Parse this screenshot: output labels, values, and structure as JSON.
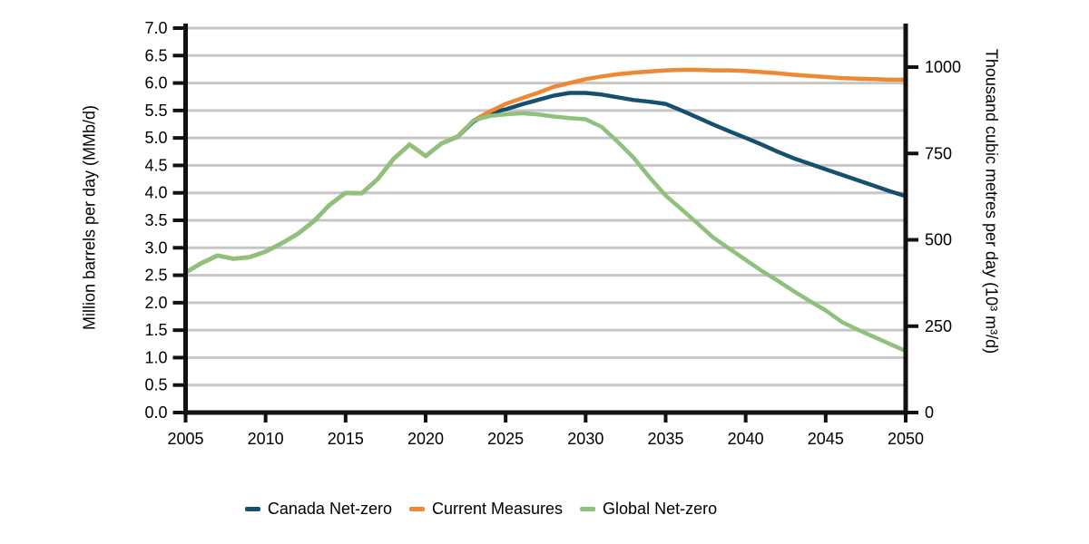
{
  "chart_data": {
    "type": "line",
    "title": "",
    "xlabel": "",
    "ylabel": "Million barrels per day (MMb/d)",
    "y2label": "Thousand cubic metres per day (10³ m³/d)",
    "xlim": [
      2005,
      2050
    ],
    "ylim": [
      0,
      7
    ],
    "y2lim": [
      0,
      1113
    ],
    "y2_per_y1": 158.99,
    "grid": true,
    "grid_color": "#c6c6c6",
    "axis_color": "#111111",
    "legend_position": "bottom",
    "x_ticks": [
      2005,
      2010,
      2015,
      2020,
      2025,
      2030,
      2035,
      2040,
      2045,
      2050
    ],
    "y_ticks": [
      "0.0",
      "0.5",
      "1.0",
      "1.5",
      "2.0",
      "2.5",
      "3.0",
      "3.5",
      "4.0",
      "4.5",
      "5.0",
      "5.5",
      "6.0",
      "6.5",
      "7.0"
    ],
    "y2_ticks": [
      "0",
      "250",
      "500",
      "750",
      "1000"
    ],
    "x": [
      2005,
      2006,
      2007,
      2008,
      2009,
      2010,
      2011,
      2012,
      2013,
      2014,
      2015,
      2016,
      2017,
      2018,
      2019,
      2020,
      2021,
      2022,
      2023,
      2024,
      2025,
      2026,
      2027,
      2028,
      2029,
      2030,
      2031,
      2032,
      2033,
      2034,
      2035,
      2036,
      2037,
      2038,
      2039,
      2040,
      2041,
      2042,
      2043,
      2044,
      2045,
      2046,
      2047,
      2048,
      2049,
      2050
    ],
    "series": [
      {
        "name": "Canada Net-zero",
        "color": "#17506f",
        "values": [
          2.55,
          2.72,
          2.86,
          2.8,
          2.83,
          2.93,
          3.08,
          3.25,
          3.48,
          3.78,
          4.0,
          3.99,
          4.25,
          4.62,
          4.88,
          4.67,
          4.9,
          5.02,
          5.3,
          5.45,
          5.52,
          5.61,
          5.69,
          5.77,
          5.82,
          5.82,
          5.79,
          5.74,
          5.69,
          5.66,
          5.62,
          5.5,
          5.37,
          5.24,
          5.12,
          5.0,
          4.88,
          4.75,
          4.63,
          4.53,
          4.43,
          4.33,
          4.23,
          4.13,
          4.03,
          3.94
        ]
      },
      {
        "name": "Current Measures",
        "color": "#ef8733",
        "values": [
          2.55,
          2.72,
          2.86,
          2.8,
          2.83,
          2.93,
          3.08,
          3.25,
          3.48,
          3.78,
          4.0,
          3.99,
          4.25,
          4.62,
          4.88,
          4.67,
          4.9,
          5.03,
          5.32,
          5.48,
          5.62,
          5.72,
          5.82,
          5.93,
          6.0,
          6.07,
          6.12,
          6.16,
          6.19,
          6.21,
          6.23,
          6.24,
          6.24,
          6.23,
          6.23,
          6.22,
          6.2,
          6.18,
          6.15,
          6.13,
          6.11,
          6.09,
          6.08,
          6.07,
          6.06,
          6.06
        ]
      },
      {
        "name": "Global Net-zero",
        "color": "#8dc17c",
        "values": [
          2.55,
          2.72,
          2.86,
          2.8,
          2.83,
          2.93,
          3.08,
          3.25,
          3.48,
          3.78,
          4.0,
          3.99,
          4.25,
          4.62,
          4.88,
          4.67,
          4.9,
          5.02,
          5.32,
          5.4,
          5.43,
          5.45,
          5.43,
          5.39,
          5.36,
          5.34,
          5.2,
          4.93,
          4.64,
          4.28,
          3.95,
          3.7,
          3.44,
          3.18,
          2.98,
          2.78,
          2.58,
          2.4,
          2.21,
          2.03,
          1.86,
          1.65,
          1.51,
          1.38,
          1.25,
          1.12
        ]
      }
    ]
  }
}
